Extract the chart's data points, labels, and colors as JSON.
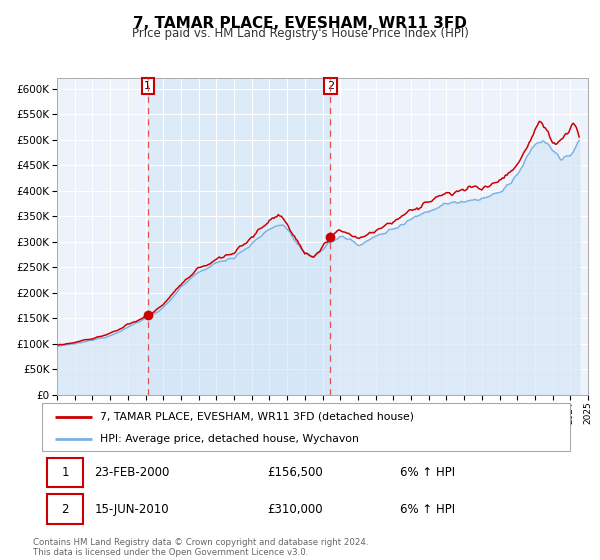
{
  "title": "7, TAMAR PLACE, EVESHAM, WR11 3FD",
  "subtitle": "Price paid vs. HM Land Registry's House Price Index (HPI)",
  "legend_line1": "7, TAMAR PLACE, EVESHAM, WR11 3FD (detached house)",
  "legend_line2": "HPI: Average price, detached house, Wychavon",
  "sale1_date": "23-FEB-2000",
  "sale1_price": "£156,500",
  "sale1_hpi": "6% ↑ HPI",
  "sale1_year": 2000.13,
  "sale1_value": 156500,
  "sale2_date": "15-JUN-2010",
  "sale2_price": "£310,000",
  "sale2_hpi": "6% ↑ HPI",
  "sale2_year": 2010.45,
  "sale2_value": 310000,
  "hpi_line_color": "#7ab0e0",
  "hpi_fill_color": "#d0e4f7",
  "price_color": "#cc0000",
  "dot_color": "#cc0000",
  "vline_color": "#dd5555",
  "plot_bg": "#eef3fb",
  "grid_color": "#ffffff",
  "ylim": [
    0,
    620000
  ],
  "xlim_start": 1995,
  "xlim_end": 2025,
  "footer": "Contains HM Land Registry data © Crown copyright and database right 2024.\nThis data is licensed under the Open Government Licence v3.0."
}
